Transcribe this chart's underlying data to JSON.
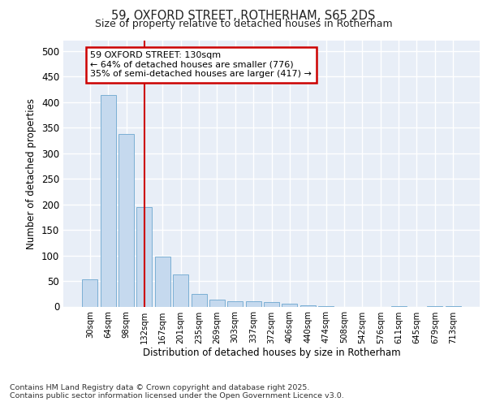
{
  "title_line1": "59, OXFORD STREET, ROTHERHAM, S65 2DS",
  "title_line2": "Size of property relative to detached houses in Rotherham",
  "xlabel": "Distribution of detached houses by size in Rotherham",
  "ylabel": "Number of detached properties",
  "bar_color": "#c5d9ee",
  "bar_edge_color": "#7bafd4",
  "categories": [
    "30sqm",
    "64sqm",
    "98sqm",
    "132sqm",
    "167sqm",
    "201sqm",
    "235sqm",
    "269sqm",
    "303sqm",
    "337sqm",
    "372sqm",
    "406sqm",
    "440sqm",
    "474sqm",
    "508sqm",
    "542sqm",
    "576sqm",
    "611sqm",
    "645sqm",
    "679sqm",
    "713sqm"
  ],
  "values": [
    53,
    413,
    338,
    194,
    97,
    62,
    25,
    14,
    10,
    10,
    8,
    5,
    3,
    1,
    0,
    0,
    0,
    1,
    0,
    1,
    1
  ],
  "vline_x": 3,
  "vline_color": "#cc0000",
  "annotation_text": "59 OXFORD STREET: 130sqm\n← 64% of detached houses are smaller (776)\n35% of semi-detached houses are larger (417) →",
  "ylim": [
    0,
    520
  ],
  "yticks": [
    0,
    50,
    100,
    150,
    200,
    250,
    300,
    350,
    400,
    450,
    500
  ],
  "plot_bg_color": "#e8eef7",
  "fig_bg_color": "#ffffff",
  "grid_color": "#ffffff",
  "footer_line1": "Contains HM Land Registry data © Crown copyright and database right 2025.",
  "footer_line2": "Contains public sector information licensed under the Open Government Licence v3.0."
}
